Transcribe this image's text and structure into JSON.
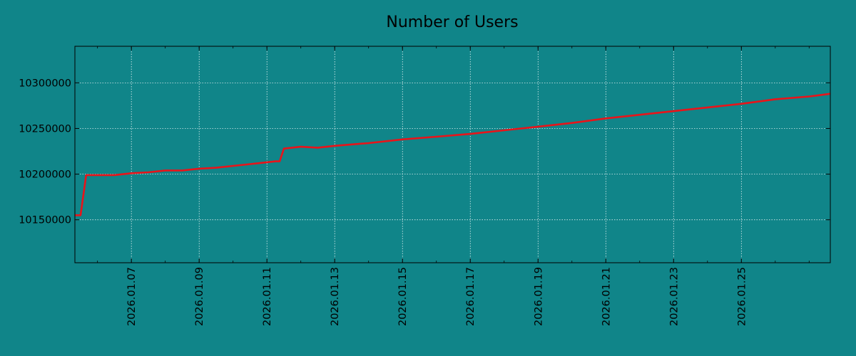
{
  "colors": {
    "background": "#108589",
    "line": "#e8141a",
    "grid": "#ffffff",
    "axis": "#000000"
  },
  "chart_data": {
    "type": "line",
    "title": "Number of Users",
    "xlabel": "",
    "ylabel": "",
    "grid": true,
    "x_axis_type": "date",
    "xlim": [
      "2026-01-05T08:00",
      "2026-01-27T15:00"
    ],
    "ylim": [
      10103000,
      10340000
    ],
    "yticks": [
      10150000,
      10200000,
      10250000,
      10300000
    ],
    "ytick_labels": [
      "10150000",
      "10200000",
      "10250000",
      "10300000"
    ],
    "xticks": [
      "2026-01-07",
      "2026-01-09",
      "2026-01-11",
      "2026-01-13",
      "2026-01-15",
      "2026-01-17",
      "2026-01-19",
      "2026-01-21",
      "2026-01-23",
      "2026-01-25"
    ],
    "xtick_labels": [
      "2026.01.07",
      "2026.01.09",
      "2026.01.11",
      "2026.01.13",
      "2026.01.15",
      "2026.01.17",
      "2026.01.19",
      "2026.01.21",
      "2026.01.23",
      "2026.01.25"
    ],
    "series": [
      {
        "x": [
          "2026-01-05T08:00",
          "2026-01-05T12:00",
          "2026-01-05T16:00",
          "2026-01-06T00:00",
          "2026-01-06T12:00",
          "2026-01-07T00:00",
          "2026-01-07T12:00",
          "2026-01-08T00:00",
          "2026-01-08T12:00",
          "2026-01-09T00:00",
          "2026-01-09T12:00",
          "2026-01-10T00:00",
          "2026-01-10T12:00",
          "2026-01-11T00:00",
          "2026-01-11T06:00",
          "2026-01-11T09:00",
          "2026-01-11T12:00",
          "2026-01-12T00:00",
          "2026-01-12T12:00",
          "2026-01-13T00:00",
          "2026-01-14T00:00",
          "2026-01-15T00:00",
          "2026-01-16T00:00",
          "2026-01-17T00:00",
          "2026-01-18T00:00",
          "2026-01-19T00:00",
          "2026-01-20T00:00",
          "2026-01-21T00:00",
          "2026-01-22T00:00",
          "2026-01-23T00:00",
          "2026-01-24T00:00",
          "2026-01-25T00:00",
          "2026-01-26T00:00",
          "2026-01-27T00:00",
          "2026-01-27T15:00"
        ],
        "y": [
          10155000,
          10155000,
          10199000,
          10199000,
          10199000,
          10201000,
          10202000,
          10204000,
          10204000,
          10206000,
          10207000,
          10209000,
          10211000,
          10213000,
          10214000,
          10214000,
          10228000,
          10230000,
          10229000,
          10231000,
          10234000,
          10238000,
          10241000,
          10244000,
          10248000,
          10252000,
          10256000,
          10261000,
          10265000,
          10269000,
          10273000,
          10277000,
          10282000,
          10285000,
          10288000
        ]
      }
    ]
  }
}
